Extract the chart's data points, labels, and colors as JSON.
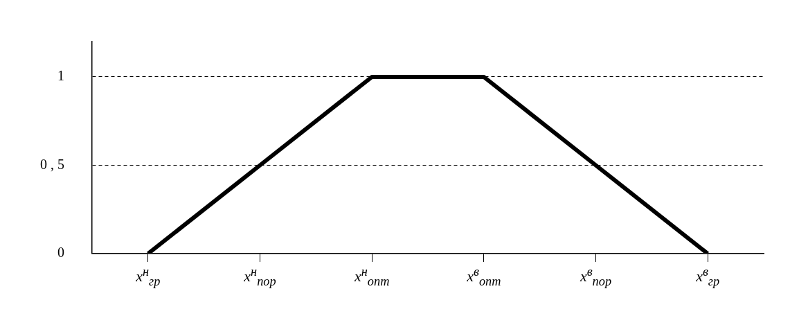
{
  "chart_data": {
    "type": "line",
    "categories": [
      "x$^{н}$$_{гр}$",
      "x$^{н}$$_{пор}$",
      "x$^{н}$$_{опт}$",
      "x$^{в}$$_{опт}$",
      "x$^{в}$$_{пор}$",
      "x$^{в}$$_{гр}$"
    ],
    "series": [
      {
        "color": "#000000",
        "values": [
          0,
          0.5,
          1,
          1,
          0.5,
          0
        ]
      }
    ],
    "ylim": [
      0,
      1.2
    ],
    "yticks": [
      0,
      {
        "value": 0.5,
        "label": "0 , 5"
      },
      1
    ],
    "grid": "y",
    "line_style": "solid",
    "marker": "none",
    "legend": false
  }
}
